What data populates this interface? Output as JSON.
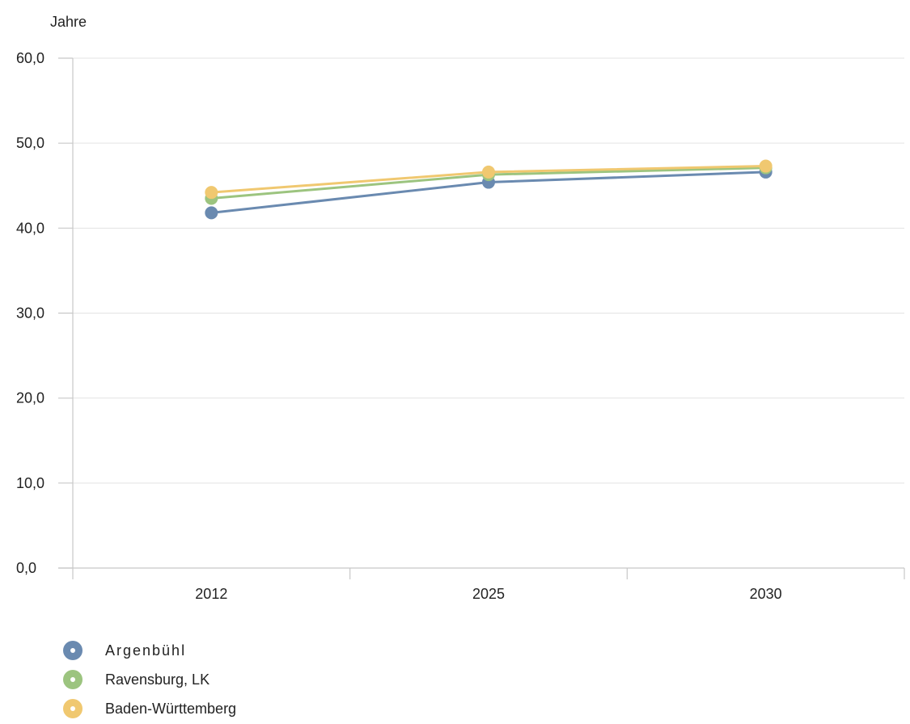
{
  "chart_data": {
    "type": "line",
    "ylabel": "Jahre",
    "ylim": [
      0,
      60
    ],
    "yticks": [
      "0,0",
      "10,0",
      "20,0",
      "30,0",
      "40,0",
      "50,0",
      "60,0"
    ],
    "yvalues": [
      0,
      10,
      20,
      30,
      40,
      50,
      60
    ],
    "categories": [
      "2012",
      "2025",
      "2030"
    ],
    "grid": true,
    "legend_position": "bottom-left",
    "series": [
      {
        "name": "Argenbühl",
        "color": "#6a8ab0",
        "values": [
          41.8,
          45.4,
          46.6
        ]
      },
      {
        "name": "Ravensburg, LK",
        "color": "#9cc47f",
        "values": [
          43.5,
          46.3,
          47.1
        ]
      },
      {
        "name": "Baden-Württemberg",
        "color": "#f0c870",
        "values": [
          44.2,
          46.6,
          47.3
        ]
      }
    ]
  }
}
